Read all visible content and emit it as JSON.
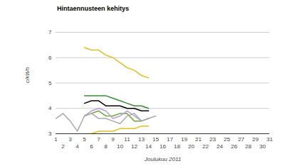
{
  "chart_data": {
    "type": "line",
    "title": "Hintaennusteen kehitys",
    "x_label": "Joulukuu 2011",
    "y_label": "c/kWh",
    "x": [
      1,
      2,
      3,
      4,
      5,
      6,
      7,
      8,
      9,
      10,
      11,
      12,
      13,
      14,
      15,
      16,
      17,
      18,
      19,
      20,
      21,
      22,
      23,
      24,
      25,
      26,
      27,
      28,
      29,
      30,
      31
    ],
    "xlim": [
      1,
      31
    ],
    "xticks": [
      1,
      2,
      3,
      4,
      5,
      6,
      7,
      8,
      9,
      10,
      11,
      12,
      13,
      14,
      15,
      16,
      17,
      18,
      19,
      20,
      21,
      22,
      23,
      24,
      25,
      26,
      27,
      28,
      29,
      30,
      31
    ],
    "ylim": [
      3,
      7
    ],
    "yticks": [
      3,
      4,
      5,
      6,
      7
    ],
    "grid": true,
    "series": [
      {
        "color": "#e0c020",
        "values": [
          null,
          null,
          null,
          null,
          6.4,
          6.3,
          6.3,
          6.1,
          6.0,
          5.8,
          5.6,
          5.5,
          5.3,
          5.2,
          null,
          null,
          null,
          null,
          null,
          null,
          null,
          null,
          null,
          null,
          null,
          null,
          null,
          null,
          null,
          null,
          null
        ]
      },
      {
        "color": "#3a8a3a",
        "values": [
          null,
          null,
          null,
          null,
          4.5,
          4.5,
          4.5,
          4.5,
          4.4,
          4.3,
          4.2,
          4.1,
          4.1,
          4.0,
          null,
          null,
          null,
          null,
          null,
          null,
          null,
          null,
          null,
          null,
          null,
          null,
          null,
          null,
          null,
          null,
          null
        ]
      },
      {
        "color": "#000000",
        "values": [
          null,
          null,
          null,
          null,
          4.2,
          4.3,
          4.3,
          4.1,
          4.1,
          4.1,
          4.0,
          4.0,
          3.9,
          3.9,
          null,
          null,
          null,
          null,
          null,
          null,
          null,
          null,
          null,
          null,
          null,
          null,
          null,
          null,
          null,
          null,
          null
        ]
      },
      {
        "color": "#6aaa3a",
        "values": [
          null,
          null,
          null,
          null,
          3.7,
          3.8,
          3.9,
          3.7,
          3.7,
          3.8,
          3.8,
          3.5,
          3.5,
          3.6,
          null,
          null,
          null,
          null,
          null,
          null,
          null,
          null,
          null,
          null,
          null,
          null,
          null,
          null,
          null,
          null,
          null
        ]
      },
      {
        "color": "#b8a0d8",
        "values": [
          null,
          null,
          null,
          null,
          3.7,
          3.9,
          4.0,
          3.9,
          3.6,
          3.7,
          3.9,
          3.7,
          3.5,
          3.6,
          null,
          null,
          null,
          null,
          null,
          null,
          null,
          null,
          null,
          null,
          null,
          null,
          null,
          null,
          null,
          null,
          null
        ]
      },
      {
        "color": "#aaaaaa",
        "values": [
          3.6,
          3.8,
          3.5,
          3.1,
          3.7,
          3.8,
          3.6,
          3.6,
          3.5,
          3.4,
          3.7,
          3.8,
          3.5,
          3.6,
          3.7,
          null,
          null,
          null,
          null,
          null,
          null,
          null,
          null,
          null,
          null,
          null,
          null,
          null,
          null,
          null,
          null
        ]
      },
      {
        "color": "#e0c020",
        "values": [
          null,
          null,
          null,
          null,
          3.0,
          3.0,
          3.1,
          3.1,
          3.1,
          3.2,
          3.2,
          3.2,
          3.3,
          3.3,
          null,
          null,
          null,
          null,
          null,
          null,
          null,
          null,
          null,
          null,
          null,
          null,
          null,
          null,
          null,
          null,
          null
        ]
      }
    ]
  }
}
